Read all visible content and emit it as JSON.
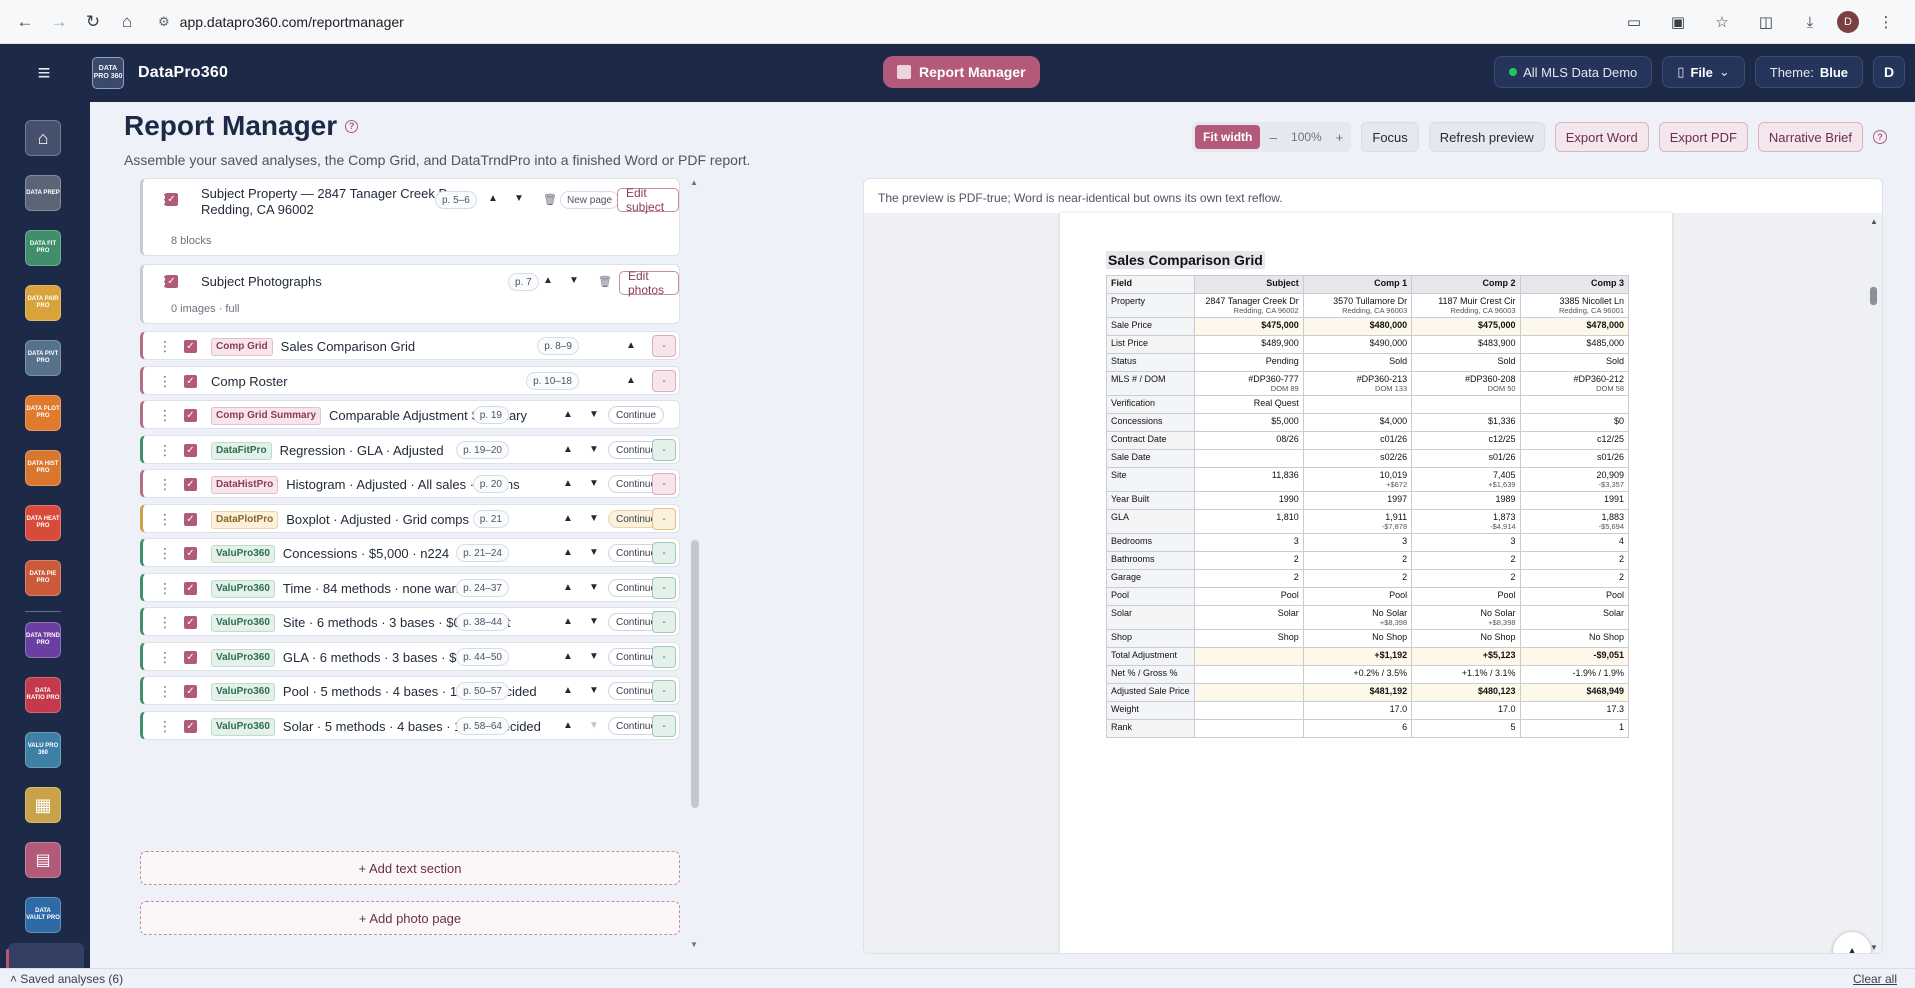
{
  "browser": {
    "url": "app.datapro360.com/reportmanager"
  },
  "header": {
    "app_name": "DataPro360",
    "logo_text": "DATA PRO 360",
    "active_module": "Report Manager",
    "mls_label": "All MLS Data Demo",
    "file_label": "File",
    "theme_label": "Theme:",
    "theme_value": "Blue",
    "avatar": "D"
  },
  "sidebar": {
    "items": [
      "",
      "DATA PREP",
      "DATA FIT PRO",
      "DATA PAIR PRO",
      "DATA PIVT PRO",
      "DATA PLOT PRO",
      "DATA HIST PRO",
      "DATA HEAT PRO",
      "DATA PIE PRO",
      "DATA TRND PRO",
      "DATA RATIO PRO",
      "VALU PRO 360",
      "",
      "",
      "DATA VAULT PRO"
    ],
    "colors": [
      "#44506c",
      "#5b6577",
      "#3f8f6b",
      "#d9a23a",
      "#55728a",
      "#e07b2e",
      "#d9772e",
      "#d84b3b",
      "#cc5a3a",
      "#6a3fa0",
      "#c43a4a",
      "#3e7fa6",
      "#c9a24a",
      "#b35a7a",
      "#2e6aa6"
    ]
  },
  "page": {
    "title": "Report Manager",
    "help": "?",
    "subtitle": "Assemble your saved analyses, the Comp Grid, and DataTrndPro into a finished Word or PDF report."
  },
  "toolbar": {
    "fit_width": "Fit width",
    "zoom_out": "–",
    "zoom_value": "100%",
    "zoom_in": "+",
    "focus": "Focus",
    "refresh": "Refresh preview",
    "export_word": "Export Word",
    "export_pdf": "Export PDF",
    "narrative": "Narrative Brief",
    "help": "?"
  },
  "sections": {
    "subject": {
      "title1": "Subject Property — 2847 Tanager Creek Dr,",
      "title2": "Redding, CA 96002",
      "pages": "p. 5–6",
      "meta": "8 blocks",
      "new_page": "New page",
      "edit": "Edit subject"
    },
    "photos": {
      "title": "Subject Photographs",
      "pages": "p. 7",
      "meta": "0 images · full",
      "edit": "Edit photos"
    },
    "items": [
      {
        "tag": "Comp Grid",
        "tone": "mauve",
        "title": "Sales Comparison Grid",
        "pages": "p. 8–9",
        "action": "",
        "mini": "-",
        "mini_tone": "m"
      },
      {
        "tag": "",
        "tone": "",
        "title": "Comp Roster",
        "pages": "p. 10–18",
        "action": "",
        "mini": "-",
        "mini_tone": "m"
      },
      {
        "tag": "Comp Grid Summary",
        "tone": "mauve",
        "title": "Comparable Adjustment Summary",
        "pages": "p. 19",
        "action": "Continue",
        "mini": "",
        "mini_tone": ""
      },
      {
        "tag": "DataFitPro",
        "tone": "green",
        "title": "Regression · GLA · Adjusted",
        "pages": "p. 19–20",
        "action": "Continue",
        "mini": "-",
        "mini_tone": "g"
      },
      {
        "tag": "DataHistPro",
        "tone": "mauve",
        "title": "Histogram · Adjusted · All sales · 10 bins",
        "pages": "p. 20",
        "action": "Continue",
        "mini": "-",
        "mini_tone": "m"
      },
      {
        "tag": "DataPlotPro",
        "tone": "amber",
        "title": "Boxplot · Adjusted · Grid comps",
        "pages": "p. 21",
        "action": "Continue",
        "mini": "-",
        "mini_tone": "a"
      },
      {
        "tag": "ValuPro360",
        "tone": "green",
        "title": "Concessions · $5,000 · n224",
        "pages": "p. 21–24",
        "action": "Continue",
        "mini": "-",
        "mini_tone": "g"
      },
      {
        "tag": "ValuPro360",
        "tone": "green",
        "title": "Time · 84 methods · none warranted",
        "pages": "p. 24–37",
        "action": "Continue",
        "mini": "-",
        "mini_tone": "g"
      },
      {
        "tag": "ValuPro360",
        "tone": "green",
        "title": "Site · 6 methods · 3 bases · $0.37/sf-lot",
        "pages": "p. 38–44",
        "action": "Continue",
        "mini": "-",
        "mini_tone": "g"
      },
      {
        "tag": "ValuPro360",
        "tone": "green",
        "title": "GLA · 6 methods · 3 bases · $78/SF",
        "pages": "p. 44–50",
        "action": "Continue",
        "mini": "-",
        "mini_tone": "g"
      },
      {
        "tag": "ValuPro360",
        "tone": "green",
        "title": "Pool · 5 methods · 4 bases · 1 level decided",
        "pages": "p. 50–57",
        "action": "Continue",
        "mini": "-",
        "mini_tone": "g"
      },
      {
        "tag": "ValuPro360",
        "tone": "green",
        "title": "Solar · 5 methods · 4 bases · 1 level decided",
        "pages": "p. 58–64",
        "action": "Continue",
        "mini": "-",
        "mini_tone": "g"
      }
    ],
    "add_text": "+ Add text section",
    "add_photo": "+ Add photo page"
  },
  "preview": {
    "note": "The preview is PDF-true; Word is near-identical but owns its own text reflow.",
    "grid_title": "Sales Comparison Grid",
    "columns": [
      "Field",
      "Subject",
      "Comp 1",
      "Comp 2",
      "Comp 3"
    ],
    "rows": [
      {
        "f": "Property",
        "v": [
          "2847 Tanager Creek Dr",
          "3570 Tullamore Dr",
          "1187 Muir Crest Cir",
          "3385 Nicollet Ln"
        ],
        "s": [
          "Redding, CA 96002",
          "Redding, CA 96003",
          "Redding, CA 96003",
          "Redding, CA 96001"
        ]
      },
      {
        "f": "Sale Price",
        "v": [
          "$475,000",
          "$480,000",
          "$475,000",
          "$478,000"
        ],
        "hl": true
      },
      {
        "f": "List Price",
        "v": [
          "$489,900",
          "$490,000",
          "$483,900",
          "$485,000"
        ]
      },
      {
        "f": "Status",
        "v": [
          "Pending",
          "Sold",
          "Sold",
          "Sold"
        ]
      },
      {
        "f": "MLS # / DOM",
        "v": [
          "#DP360-777",
          "#DP360-213",
          "#DP360-208",
          "#DP360-212"
        ],
        "s": [
          "DOM 89",
          "DOM 133",
          "DOM 50",
          "DOM 58"
        ]
      },
      {
        "f": "Verification",
        "v": [
          "Real Quest",
          "",
          "",
          ""
        ]
      },
      {
        "f": "Concessions",
        "v": [
          "$5,000",
          "$4,000",
          "$1,336",
          "$0"
        ]
      },
      {
        "f": "Contract Date",
        "v": [
          "08/26",
          "c01/26",
          "c12/25",
          "c12/25"
        ]
      },
      {
        "f": "Sale Date",
        "v": [
          "",
          "s02/26",
          "s01/26",
          "s01/26"
        ]
      },
      {
        "f": "Site",
        "v": [
          "11,836",
          "10,019",
          "7,405",
          "20,909"
        ],
        "s": [
          "",
          "+$672",
          "+$1,639",
          "-$3,357"
        ]
      },
      {
        "f": "Year Built",
        "v": [
          "1990",
          "1997",
          "1989",
          "1991"
        ]
      },
      {
        "f": "GLA",
        "v": [
          "1,810",
          "1,911",
          "1,873",
          "1,883"
        ],
        "s": [
          "",
          "-$7,878",
          "-$4,914",
          "-$5,694"
        ]
      },
      {
        "f": "Bedrooms",
        "v": [
          "3",
          "3",
          "3",
          "4"
        ]
      },
      {
        "f": "Bathrooms",
        "v": [
          "2",
          "2",
          "2",
          "2"
        ]
      },
      {
        "f": "Garage",
        "v": [
          "2",
          "2",
          "2",
          "2"
        ]
      },
      {
        "f": "Pool",
        "v": [
          "Pool",
          "Pool",
          "Pool",
          "Pool"
        ]
      },
      {
        "f": "Solar",
        "v": [
          "Solar",
          "No Solar",
          "No Solar",
          "Solar"
        ],
        "s": [
          "",
          "+$8,398",
          "+$8,398",
          ""
        ]
      },
      {
        "f": "Shop",
        "v": [
          "Shop",
          "No Shop",
          "No Shop",
          "No Shop"
        ]
      },
      {
        "f": "Total Adjustment",
        "v": [
          "",
          "+$1,192",
          "+$5,123",
          "-$9,051"
        ],
        "hl": true
      },
      {
        "f": "Net % / Gross %",
        "v": [
          "",
          "+0.2% / 3.5%",
          "+1.1% / 3.1%",
          "-1.9% / 1.9%"
        ]
      },
      {
        "f": "Adjusted Sale Price",
        "v": [
          "",
          "$481,192",
          "$480,123",
          "$468,949"
        ],
        "hl": true
      },
      {
        "f": "Weight",
        "v": [
          "",
          "17.0",
          "17.0",
          "17.3"
        ]
      },
      {
        "f": "Rank",
        "v": [
          "",
          "6",
          "5",
          "1"
        ]
      }
    ]
  },
  "status": {
    "saved": "Saved analyses (6)",
    "clear": "Clear all"
  }
}
